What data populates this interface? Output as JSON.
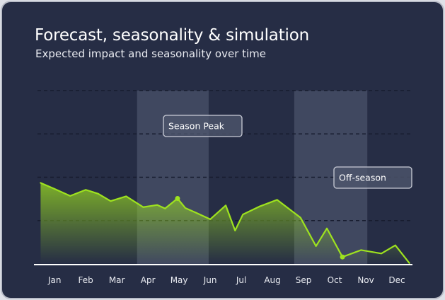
{
  "header": {
    "title": "Forecast, seasonality & simulation",
    "subtitle": "Expected impact and seasonality over time"
  },
  "colors": {
    "background": "#262d45",
    "line": "#9ee21f",
    "band": "#4a5169",
    "axis": "#ffffff",
    "grid": "#171c2e"
  },
  "chart_data": {
    "type": "area",
    "title": "Forecast, seasonality & simulation",
    "subtitle": "Expected impact and seasonality over time",
    "xlabel": "",
    "ylabel": "",
    "categories": [
      "Jan",
      "Feb",
      "Mar",
      "Apr",
      "May",
      "Jun",
      "Jul",
      "Aug",
      "Sep",
      "Oct",
      "Nov",
      "Dec"
    ],
    "xlim": [
      0.45,
      12.5
    ],
    "ylim": [
      0,
      4
    ],
    "grid": true,
    "bands": [
      {
        "from": 3.65,
        "to": 5.95
      },
      {
        "from": 8.7,
        "to": 11.05
      }
    ],
    "series": [
      {
        "x": [
          0.55,
          1.0,
          1.5,
          2.0,
          2.4,
          2.8,
          3.3,
          3.85,
          4.3,
          4.55,
          4.95,
          5.2,
          5.55,
          6.0,
          6.5,
          6.8,
          7.05,
          7.6,
          8.15,
          8.9,
          9.4,
          9.75,
          10.25,
          10.85,
          11.5,
          11.95,
          12.4
        ],
        "values": [
          1.87,
          1.73,
          1.57,
          1.71,
          1.62,
          1.45,
          1.56,
          1.31,
          1.36,
          1.28,
          1.51,
          1.29,
          1.18,
          1.03,
          1.35,
          0.77,
          1.14,
          1.33,
          1.48,
          1.07,
          0.41,
          0.82,
          0.16,
          0.32,
          0.24,
          0.43,
          0.02
        ]
      }
    ],
    "highlights": [
      {
        "x": 4.95,
        "y": 1.51,
        "label": "Season Peak"
      },
      {
        "x": 10.25,
        "y": 0.16,
        "label": "Off-season"
      }
    ]
  }
}
